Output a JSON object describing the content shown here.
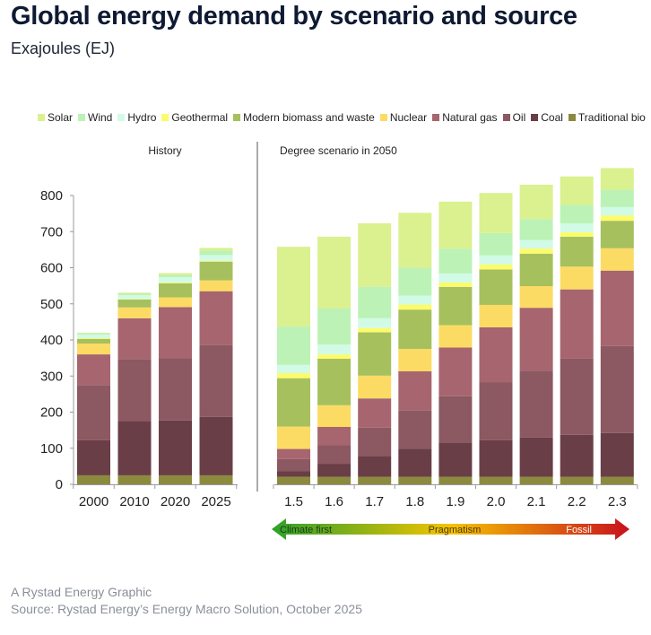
{
  "title": "Global energy demand by scenario and source",
  "subtitle": "Exajoules (EJ)",
  "footer": {
    "line1": "A Rystad Energy Graphic",
    "line2": "Source: Rystad Energy’s Energy Macro Solution, October 2025"
  },
  "chart_data": {
    "type": "bar",
    "stacked": true,
    "title": "Global energy demand by scenario and source",
    "ylabel": "Exajoules (EJ)",
    "ylim": [
      0,
      800
    ],
    "yticks": [
      0,
      100,
      200,
      300,
      400,
      500,
      600,
      700,
      800
    ],
    "grid": false,
    "legend_position": "top",
    "panels": [
      {
        "label": "History",
        "categories": [
          "2000",
          "2010",
          "2020",
          "2025"
        ]
      },
      {
        "label": "Degree scenario in 2050",
        "categories": [
          "1.5",
          "1.6",
          "1.7",
          "1.8",
          "1.9",
          "2.0",
          "2.1",
          "2.2",
          "2.3"
        ]
      }
    ],
    "categories": [
      "2000",
      "2010",
      "2020",
      "2025",
      "1.5",
      "1.6",
      "1.7",
      "1.8",
      "1.9",
      "2.0",
      "2.1",
      "2.2",
      "2.3"
    ],
    "series": [
      {
        "name": "Traditional bio",
        "color": "#8c8a3e",
        "values": [
          25,
          25,
          25,
          25,
          21,
          21,
          21,
          21,
          21,
          21,
          21,
          21,
          21
        ]
      },
      {
        "name": "Coal",
        "color": "#6a3e47",
        "values": [
          97,
          150,
          152,
          162,
          16,
          36,
          58,
          78,
          95,
          101,
          109,
          116,
          121
        ]
      },
      {
        "name": "Oil",
        "color": "#8c5861",
        "values": [
          153,
          172,
          173,
          199,
          33,
          51,
          78,
          105,
          128,
          160,
          185,
          211,
          241
        ]
      },
      {
        "name": "Natural gas",
        "color": "#a6656f",
        "values": [
          85,
          113,
          141,
          149,
          28,
          51,
          81,
          109,
          135,
          153,
          174,
          192,
          209
        ]
      },
      {
        "name": "Nuclear",
        "color": "#fcdb64",
        "values": [
          30,
          30,
          27,
          30,
          62,
          60,
          63,
          62,
          62,
          62,
          60,
          63,
          62
        ]
      },
      {
        "name": "Modern biomass and waste",
        "color": "#a6c05e",
        "values": [
          13,
          22,
          39,
          52,
          134,
          129,
          120,
          109,
          106,
          98,
          90,
          83,
          76
        ]
      },
      {
        "name": "Geothermal",
        "color": "#fdfb6b",
        "values": [
          2,
          1,
          2,
          2,
          14,
          12,
          12,
          14,
          12,
          14,
          14,
          12,
          15
        ]
      },
      {
        "name": "Hydro",
        "color": "#d1fbe6",
        "values": [
          10,
          11,
          15,
          16,
          23,
          27,
          27,
          25,
          25,
          25,
          24,
          25,
          23
        ]
      },
      {
        "name": "Wind",
        "color": "#bcf2b6",
        "values": [
          3,
          4,
          6,
          13,
          106,
          100,
          87,
          77,
          69,
          62,
          58,
          51,
          48
        ]
      },
      {
        "name": "Solar",
        "color": "#dbf08f",
        "values": [
          2,
          3,
          5,
          7,
          221,
          199,
          176,
          152,
          130,
          111,
          95,
          79,
          60
        ]
      }
    ],
    "legend_order": [
      "Solar",
      "Wind",
      "Hydro",
      "Geothermal",
      "Modern biomass and waste",
      "Nuclear",
      "Natural gas",
      "Oil",
      "Coal",
      "Traditional bio"
    ],
    "scale_arrow": {
      "labels": [
        "Climate first",
        "Pragmatism",
        "Fossil"
      ],
      "colors": [
        "#2ca02c",
        "#f5c400",
        "#c8101e"
      ]
    }
  }
}
